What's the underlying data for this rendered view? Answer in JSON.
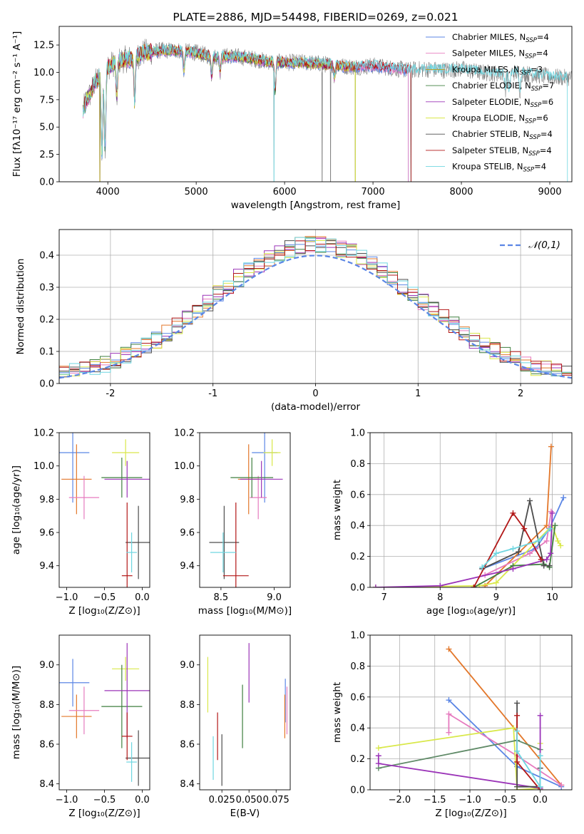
{
  "colors": {
    "chabrier_miles": "#5b86e5",
    "salpeter_miles": "#e67bbf",
    "kroupa_miles": "#b8a01b",
    "chabrier_elodie": "#3f7f3f",
    "salpeter_elodie": "#9b34b8",
    "kroupa_elodie": "#d9e84a",
    "chabrier_stelib": "#4d4d4d",
    "salpeter_stelib": "#b21717",
    "kroupa_stelib": "#6fd6e0",
    "orange": "#e3772a",
    "sage": "#5f8a67",
    "gray_spectrum": "#808080"
  },
  "chart_data": [
    {
      "id": "spectrum",
      "type": "line",
      "title": "PLATE=2886, MJD=54498, FIBERID=0269, z=0.021",
      "xlabel": "wavelength [Angstrom, rest frame]",
      "ylabel": "Flux [fλ10⁻¹⁷ erg cm⁻² s⁻¹ A⁻¹]",
      "xlim": [
        3450,
        9250
      ],
      "ylim": [
        0,
        14.2
      ],
      "xticks": [
        4000,
        5000,
        6000,
        7000,
        8000,
        9000
      ],
      "yticks": [
        "0.0",
        "2.5",
        "5.0",
        "7.5",
        "10.0",
        "12.5"
      ],
      "legend_position": "top-right",
      "legend": [
        {
          "name": "Chabrier MILES, N",
          "sub": "SSP",
          "n": "=4",
          "color": "chabrier_miles"
        },
        {
          "name": "Salpeter MILES, N",
          "sub": "SSP",
          "n": "=4",
          "color": "salpeter_miles"
        },
        {
          "name": "Kroupa MILES, N",
          "sub": "SSP",
          "n": "=3",
          "color": "kroupa_miles"
        },
        {
          "name": "Chabrier ELODIE, N",
          "sub": "SSP",
          "n": "=7",
          "color": "chabrier_elodie"
        },
        {
          "name": "Salpeter ELODIE, N",
          "sub": "SSP",
          "n": "=6",
          "color": "salpeter_elodie"
        },
        {
          "name": "Kroupa ELODIE, N",
          "sub": "SSP",
          "n": "=6",
          "color": "kroupa_elodie"
        },
        {
          "name": "Chabrier STELIB, N",
          "sub": "SSP",
          "n": "=4",
          "color": "chabrier_stelib"
        },
        {
          "name": "Salpeter STELIB, N",
          "sub": "SSP",
          "n": "=4",
          "color": "salpeter_stelib"
        },
        {
          "name": "Kroupa STELIB, N",
          "sub": "SSP",
          "n": "=4",
          "color": "kroupa_stelib"
        }
      ],
      "continuum": [
        [
          3700,
          6.0
        ],
        [
          3760,
          7.5
        ],
        [
          3800,
          8.0
        ],
        [
          3850,
          9.0
        ],
        [
          3900,
          9.5
        ],
        [
          3950,
          9.5
        ],
        [
          4000,
          10.5
        ],
        [
          4100,
          11.0
        ],
        [
          4200,
          11.2
        ],
        [
          4300,
          11.3
        ],
        [
          4400,
          11.8
        ],
        [
          4600,
          12.0
        ],
        [
          4800,
          12.0
        ],
        [
          5000,
          11.8
        ],
        [
          5200,
          11.4
        ],
        [
          5400,
          11.5
        ],
        [
          5600,
          11.3
        ],
        [
          5800,
          11.0
        ],
        [
          6000,
          10.9
        ],
        [
          6200,
          10.9
        ],
        [
          6400,
          10.8
        ],
        [
          6600,
          10.6
        ],
        [
          6800,
          10.5
        ],
        [
          7000,
          10.6
        ],
        [
          7200,
          10.4
        ],
        [
          7400,
          10.2
        ],
        [
          7600,
          10.3
        ],
        [
          7800,
          10.2
        ],
        [
          8000,
          10.3
        ],
        [
          8200,
          10.0
        ],
        [
          8400,
          9.9
        ],
        [
          8600,
          10.0
        ],
        [
          8800,
          9.8
        ],
        [
          9000,
          9.6
        ],
        [
          9200,
          9.5
        ]
      ],
      "absorption": [
        {
          "x": 3934,
          "depth": 0.75
        },
        {
          "x": 3969,
          "depth": 0.7
        },
        {
          "x": 4102,
          "depth": 0.3
        },
        {
          "x": 4304,
          "depth": 0.35
        },
        {
          "x": 4861,
          "depth": 0.15
        },
        {
          "x": 5175,
          "depth": 0.15
        },
        {
          "x": 5270,
          "depth": 0.12
        },
        {
          "x": 5892,
          "depth": 0.25
        },
        {
          "x": 6563,
          "depth": 0.1
        },
        {
          "x": 8498,
          "depth": 0.15
        },
        {
          "x": 8542,
          "depth": 0.18
        },
        {
          "x": 8662,
          "depth": 0.16
        }
      ],
      "drops_to_zero": [
        3910,
        5880,
        6425,
        6520,
        6800,
        7430
      ]
    },
    {
      "id": "residuals",
      "type": "histogram",
      "xlabel": "(data-model)/error",
      "ylabel": "Normed distribution",
      "xlim": [
        -2.5,
        2.5
      ],
      "ylim": [
        0,
        0.48
      ],
      "xticks": [
        -2,
        -1,
        0,
        1,
        2
      ],
      "yticks": [
        "0.0",
        "0.1",
        "0.2",
        "0.3",
        "0.4"
      ],
      "legend_position": "top-right",
      "legend_label": "𝒩(0,1)",
      "gauss_color": "chabrier_miles",
      "bin_width": 0.1,
      "grid": true
    },
    {
      "id": "age_vs_Z",
      "type": "scatter",
      "xlabel": "Z [log₁₀(Z/Z⊙)]",
      "ylabel": "age  [log₁₀(age/yr)]",
      "xlim": [
        -1.1,
        0.1
      ],
      "ylim": [
        9.27,
        10.2
      ],
      "xticks": [
        "−1.0",
        "−0.5",
        "0.0"
      ],
      "xtick_values": [
        -1.0,
        -0.5,
        0.0
      ],
      "yticks": [
        "9.4",
        "9.6",
        "9.8",
        "10.0",
        "10.2"
      ],
      "ytick_values": [
        9.4,
        9.6,
        9.8,
        10.0,
        10.2
      ],
      "points": [
        {
          "x": -0.92,
          "xerr": 0.22,
          "y": 10.08,
          "yerr": 0.3,
          "color": "chabrier_miles"
        },
        {
          "x": -0.87,
          "xerr": 0.2,
          "y": 9.92,
          "yerr": 0.21,
          "color": "orange"
        },
        {
          "x": -0.77,
          "xerr": 0.2,
          "y": 9.81,
          "yerr": 0.13,
          "color": "salpeter_miles"
        },
        {
          "x": -0.22,
          "xerr": 0.18,
          "y": 10.08,
          "yerr": 0.08,
          "color": "kroupa_elodie"
        },
        {
          "x": -0.27,
          "xerr": 0.27,
          "y": 9.93,
          "yerr": 0.12,
          "color": "chabrier_elodie"
        },
        {
          "x": -0.2,
          "xerr": 0.3,
          "y": 9.92,
          "yerr": 0.11,
          "color": "salpeter_elodie"
        },
        {
          "x": -0.05,
          "xerr": 0.17,
          "y": 9.54,
          "yerr": 0.22,
          "color": "chabrier_stelib"
        },
        {
          "x": -0.2,
          "xerr": 0.07,
          "y": 9.34,
          "yerr": 0.44,
          "color": "salpeter_stelib"
        },
        {
          "x": -0.14,
          "xerr": 0.07,
          "y": 9.48,
          "yerr": 0.12,
          "color": "kroupa_stelib"
        }
      ]
    },
    {
      "id": "age_vs_mass",
      "type": "scatter",
      "xlabel": "mass [log₁₀(M/M⊙)]",
      "ylabel": "",
      "xlim": [
        8.3,
        9.15
      ],
      "ylim": [
        9.27,
        10.2
      ],
      "xticks": [
        "8.5",
        "9.0"
      ],
      "xtick_values": [
        8.5,
        9.0
      ],
      "yticks": [
        "9.4",
        "9.6",
        "9.8",
        "10.0",
        "10.2"
      ],
      "ytick_values": [
        9.4,
        9.6,
        9.8,
        10.0,
        10.2
      ],
      "points": [
        {
          "x": 8.91,
          "xerr": 0.12,
          "y": 10.08,
          "yerr": 0.3,
          "color": "chabrier_miles"
        },
        {
          "x": 8.76,
          "xerr": 0.1,
          "y": 9.92,
          "yerr": 0.21,
          "color": "orange"
        },
        {
          "x": 8.85,
          "xerr": 0.08,
          "y": 9.81,
          "yerr": 0.13,
          "color": "salpeter_miles"
        },
        {
          "x": 8.98,
          "xerr": 0.08,
          "y": 10.08,
          "yerr": 0.08,
          "color": "kroupa_elodie"
        },
        {
          "x": 8.79,
          "xerr": 0.2,
          "y": 9.93,
          "yerr": 0.12,
          "color": "chabrier_elodie"
        },
        {
          "x": 8.88,
          "xerr": 0.2,
          "y": 9.92,
          "yerr": 0.11,
          "color": "salpeter_elodie"
        },
        {
          "x": 8.53,
          "xerr": 0.14,
          "y": 9.54,
          "yerr": 0.22,
          "color": "chabrier_stelib"
        },
        {
          "x": 8.64,
          "xerr": 0.12,
          "y": 9.34,
          "yerr": 0.44,
          "color": "salpeter_stelib"
        },
        {
          "x": 8.52,
          "xerr": 0.12,
          "y": 9.48,
          "yerr": 0.12,
          "color": "kroupa_stelib"
        }
      ]
    },
    {
      "id": "weight_vs_age",
      "type": "line",
      "xlabel": "age  [log₁₀(age/yr)]",
      "ylabel": "mass weight",
      "xlim": [
        6.75,
        10.35
      ],
      "ylim": [
        0,
        1.0
      ],
      "xticks": [
        "7",
        "8",
        "9",
        "10"
      ],
      "xtick_values": [
        7,
        8,
        9,
        10
      ],
      "yticks": [
        "0.0",
        "0.2",
        "0.4",
        "0.6",
        "0.8",
        "1.0"
      ],
      "ytick_values": [
        0,
        0.2,
        0.4,
        0.6,
        0.8,
        1.0
      ],
      "grid": true,
      "series": [
        {
          "color": "chabrier_miles",
          "x": [
            8.75,
            9.7,
            9.95,
            10.2
          ],
          "y": [
            0.12,
            0.25,
            0.38,
            0.58
          ]
        },
        {
          "color": "orange",
          "x": [
            8.8,
            9.9,
            9.98
          ],
          "y": [
            0.01,
            0.4,
            0.91
          ]
        },
        {
          "color": "salpeter_miles",
          "x": [
            8.8,
            9.6,
            9.9,
            9.98
          ],
          "y": [
            0.08,
            0.22,
            0.3,
            0.49
          ]
        },
        {
          "color": "kroupa_elodie",
          "x": [
            6.85,
            8.7,
            9.0,
            10.0,
            10.1,
            10.15
          ],
          "y": [
            0.0,
            0.01,
            0.03,
            0.4,
            0.3,
            0.27
          ]
        },
        {
          "color": "chabrier_elodie",
          "x": [
            8.6,
            9.3,
            9.85,
            9.95,
            10.05
          ],
          "y": [
            0.0,
            0.14,
            0.15,
            0.13,
            0.4
          ]
        },
        {
          "color": "salpeter_elodie",
          "x": [
            6.85,
            8.0,
            9.3,
            9.9,
            9.97,
            10.0
          ],
          "y": [
            0.0,
            0.01,
            0.12,
            0.18,
            0.22,
            0.48
          ]
        },
        {
          "color": "chabrier_stelib",
          "x": [
            8.75,
            9.4,
            9.6,
            9.85,
            9.95
          ],
          "y": [
            0.12,
            0.23,
            0.56,
            0.14,
            0.14
          ]
        },
        {
          "color": "salpeter_stelib",
          "x": [
            8.6,
            9.3,
            9.5,
            9.8
          ],
          "y": [
            0.0,
            0.48,
            0.38,
            0.18
          ]
        },
        {
          "color": "kroupa_stelib",
          "x": [
            8.75,
            9.0,
            9.3,
            9.75,
            9.97
          ],
          "y": [
            0.13,
            0.22,
            0.25,
            0.3,
            0.38
          ]
        }
      ]
    },
    {
      "id": "mass_vs_Z",
      "type": "scatter",
      "xlabel": "Z [log₁₀(Z/Z⊙)]",
      "ylabel": "mass [log₁₀(M/M⊙)]",
      "xlim": [
        -1.1,
        0.1
      ],
      "ylim": [
        8.37,
        9.15
      ],
      "xticks": [
        "−1.0",
        "−0.5",
        "0.0"
      ],
      "xtick_values": [
        -1.0,
        -0.5,
        0.0
      ],
      "yticks": [
        "8.4",
        "8.6",
        "8.8",
        "9.0"
      ],
      "ytick_values": [
        8.4,
        8.6,
        8.8,
        9.0
      ],
      "points": [
        {
          "x": -0.92,
          "xerr": 0.22,
          "y": 8.91,
          "yerr": 0.12,
          "color": "chabrier_miles"
        },
        {
          "x": -0.87,
          "xerr": 0.2,
          "y": 8.74,
          "yerr": 0.11,
          "color": "orange"
        },
        {
          "x": -0.77,
          "xerr": 0.2,
          "y": 8.77,
          "yerr": 0.12,
          "color": "salpeter_miles"
        },
        {
          "x": -0.22,
          "xerr": 0.18,
          "y": 8.98,
          "yerr": 0.06,
          "color": "kroupa_elodie"
        },
        {
          "x": -0.27,
          "xerr": 0.27,
          "y": 8.79,
          "yerr": 0.21,
          "color": "chabrier_elodie"
        },
        {
          "x": -0.2,
          "xerr": 0.3,
          "y": 8.87,
          "yerr": 0.24,
          "color": "salpeter_elodie"
        },
        {
          "x": -0.05,
          "xerr": 0.17,
          "y": 8.53,
          "yerr": 0.14,
          "color": "chabrier_stelib"
        },
        {
          "x": -0.2,
          "xerr": 0.07,
          "y": 8.64,
          "yerr": 0.12,
          "color": "salpeter_stelib"
        },
        {
          "x": -0.14,
          "xerr": 0.07,
          "y": 8.51,
          "yerr": 0.1,
          "color": "kroupa_stelib"
        }
      ]
    },
    {
      "id": "mass_vs_EBV",
      "type": "scatter",
      "xlabel": "E(B-V)",
      "ylabel": "",
      "xlim": [
        0.0045,
        0.088
      ],
      "ylim": [
        8.37,
        9.15
      ],
      "xticks": [
        "0.025",
        "0.050",
        "0.075"
      ],
      "xtick_values": [
        0.025,
        0.05,
        0.075
      ],
      "yticks": [
        "8.4",
        "8.6",
        "8.8",
        "9.0"
      ],
      "ytick_values": [
        8.4,
        8.6,
        8.8,
        9.0
      ],
      "points": [
        {
          "x": 0.0835,
          "xerr": 0,
          "y": 8.82,
          "yerr": 0.11,
          "color": "chabrier_miles"
        },
        {
          "x": 0.083,
          "xerr": 0,
          "y": 8.74,
          "yerr": 0.11,
          "color": "orange"
        },
        {
          "x": 0.085,
          "xerr": 0,
          "y": 8.77,
          "yerr": 0.12,
          "color": "salpeter_miles"
        },
        {
          "x": 0.012,
          "xerr": 0,
          "y": 8.9,
          "yerr": 0.14,
          "color": "kroupa_elodie"
        },
        {
          "x": 0.044,
          "xerr": 0,
          "y": 8.74,
          "yerr": 0.16,
          "color": "chabrier_elodie"
        },
        {
          "x": 0.05,
          "xerr": 0,
          "y": 8.96,
          "yerr": 0.15,
          "color": "salpeter_elodie"
        },
        {
          "x": 0.025,
          "xerr": 0,
          "y": 8.52,
          "yerr": 0.13,
          "color": "chabrier_stelib"
        },
        {
          "x": 0.021,
          "xerr": 0,
          "y": 8.64,
          "yerr": 0.12,
          "color": "salpeter_stelib"
        },
        {
          "x": 0.017,
          "xerr": 0,
          "y": 8.53,
          "yerr": 0.11,
          "color": "kroupa_stelib"
        }
      ]
    },
    {
      "id": "weight_vs_Z",
      "type": "line",
      "xlabel": "Z [log₁₀(Z/Z⊙)]",
      "ylabel": "mass weight",
      "xlim": [
        -2.42,
        0.45
      ],
      "ylim": [
        0,
        1.0
      ],
      "xticks": [
        "−2.0",
        "−1.5",
        "−1.0",
        "−0.5",
        "0.0"
      ],
      "xtick_values": [
        -2.0,
        -1.5,
        -1.0,
        -0.5,
        0.0
      ],
      "yticks": [
        "0.0",
        "0.2",
        "0.4",
        "0.6",
        "0.8",
        "1.0"
      ],
      "ytick_values": [
        0,
        0.2,
        0.4,
        0.6,
        0.8,
        1.0
      ],
      "grid": true,
      "series": [
        {
          "color": "chabrier_miles",
          "x": [
            -1.3,
            -0.33,
            0.3
          ],
          "y": [
            0.58,
            0.15,
            0.02
          ]
        },
        {
          "color": "orange",
          "x": [
            -1.3,
            0.3
          ],
          "y": [
            0.91,
            0.03
          ]
        },
        {
          "color": "salpeter_miles",
          "x": [
            -1.3,
            -1.3,
            -0.33,
            0.3
          ],
          "y": [
            0.37,
            0.49,
            0.22,
            0.03
          ]
        },
        {
          "color": "kroupa_elodie",
          "x": [
            -2.3,
            -0.38,
            -0.33,
            0.0,
            0.0
          ],
          "y": [
            0.27,
            0.4,
            0.0,
            0.01,
            0.3
          ]
        },
        {
          "color": "sage",
          "x": [
            -2.3,
            -0.33,
            0.0
          ],
          "y": [
            0.14,
            0.32,
            0.26
          ]
        },
        {
          "color": "salpeter_elodie",
          "x": [
            -2.3,
            -2.3,
            0.0,
            0.0
          ],
          "y": [
            0.22,
            0.17,
            0.01,
            0.48
          ]
        },
        {
          "color": "chabrier_stelib",
          "x": [
            -0.33,
            -0.33,
            0.0,
            0.0
          ],
          "y": [
            0.56,
            0.02,
            0.02,
            0.14
          ]
        },
        {
          "color": "salpeter_stelib",
          "x": [
            -0.33,
            -0.33,
            0.0
          ],
          "y": [
            0.48,
            0.18,
            0.0
          ]
        },
        {
          "color": "kroupa_stelib",
          "x": [
            -0.33,
            -0.33,
            0.0,
            0.0
          ],
          "y": [
            0.38,
            0.25,
            0.02,
            0.22
          ]
        }
      ]
    }
  ]
}
